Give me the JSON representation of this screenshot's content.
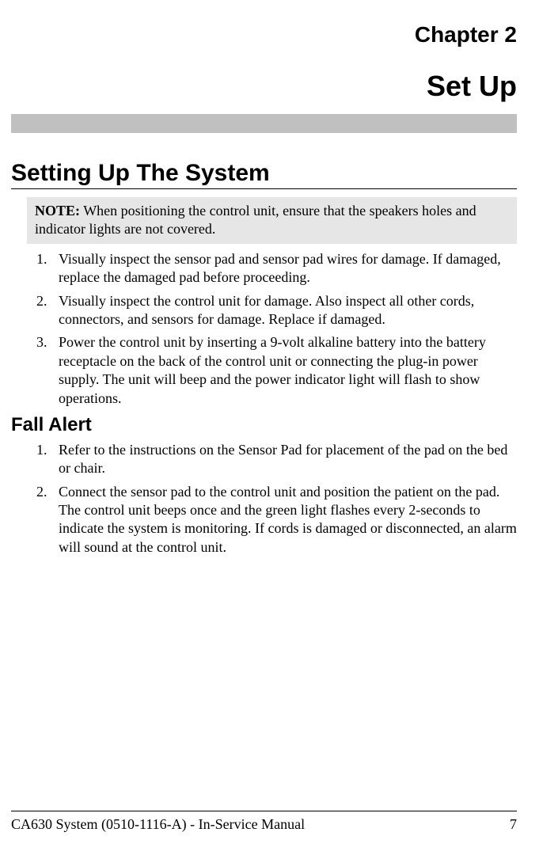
{
  "colors": {
    "background": "#ffffff",
    "text": "#000000",
    "gray_bar": "#c0c0c0",
    "note_bg": "#e6e6e6",
    "rule": "#000000"
  },
  "typography": {
    "body_family": "Times New Roman",
    "heading_family": "Arial",
    "chapter_label_size_pt": 21,
    "chapter_title_size_pt": 27,
    "h1_size_pt": 22,
    "h2_size_pt": 18,
    "body_size_pt": 13.5
  },
  "chapter": {
    "label": "Chapter 2",
    "title": "Set Up"
  },
  "section1": {
    "heading": "Setting Up The System",
    "note_label": "NOTE:",
    "note_text": " When positioning the control unit, ensure that the speakers holes and indicator lights are not covered.",
    "steps": [
      "Visually inspect the sensor pad and sensor pad wires for damage. If damaged, replace the damaged pad before proceeding.",
      "Visually inspect the control unit for damage. Also inspect all other cords, connectors, and sensors for damage. Replace if damaged.",
      "Power the control unit by inserting a 9-volt alkaline battery into the battery receptacle on the back of the control unit or connecting the plug-in power supply. The unit will beep and the power indicator light will flash to show operations."
    ]
  },
  "section2": {
    "heading": "Fall Alert",
    "steps": [
      "Refer to the instructions on the Sensor Pad for placement of the pad on the bed or chair.",
      "Connect the sensor pad to the control unit and position the patient on the pad. The control unit beeps once and the green light flashes every 2-seconds to indicate the system is monitoring. If cords is damaged or disconnected, an alarm will sound at the control unit."
    ]
  },
  "footer": {
    "left": "CA630 System (0510-1116-A) - In-Service Manual",
    "page_number": "7"
  }
}
